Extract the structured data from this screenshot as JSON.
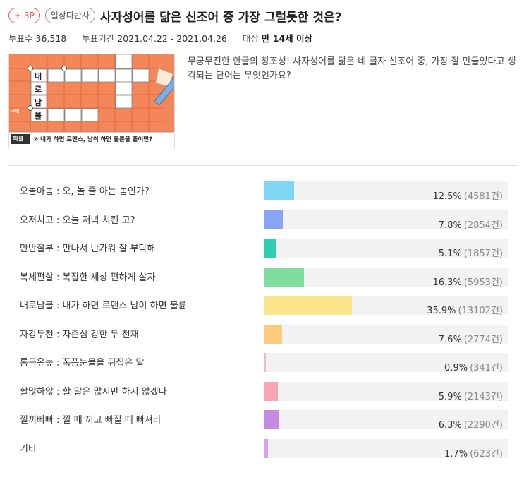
{
  "header": {
    "point_badge": "+ 3P",
    "category_badge": "일상다반사",
    "title": "사자성어를 닮은 신조어 중 가장 그럴듯한 것은?"
  },
  "meta": {
    "votes_label": "투표수",
    "votes_value": "36,518",
    "period_label": "투표기간",
    "period_value": "2021.04.22 - 2021.04.26",
    "target_label": "대상",
    "target_value": "만 14세 이상"
  },
  "thumbnail": {
    "vertical_word": [
      "내",
      "로",
      "남",
      "불"
    ],
    "box_label": "해설",
    "caption": "② 내가 하면 로맨스, 남이 하면 불륜을 줄이면?",
    "colors": {
      "orange": "#f4875a",
      "white": "#ffffff"
    }
  },
  "description": "무궁무진한 한글의 창조성! 사자성어를 닮은 네 글자 신조어 중, 가장 잘 만들었다고 생각되는 단어는 무엇인가요?",
  "options": [
    {
      "label": "오놀아놈 : 오, 놀 줄 아는 놈인가?",
      "pct": "12.5%",
      "count": "(4581건)",
      "share": 12.5,
      "color": "#7fd6f2"
    },
    {
      "label": "오저치고 : 오늘 저녁 치킨 고?",
      "pct": "7.8%",
      "count": "(2854건)",
      "share": 7.8,
      "color": "#86a6f5"
    },
    {
      "label": "만반잘부 : 만나서 반가워 잘 부탁해",
      "pct": "5.1%",
      "count": "(1857건)",
      "share": 5.1,
      "color": "#2ecfb1"
    },
    {
      "label": "복세편살 : 복잡한 세상 편하게 살자",
      "pct": "16.3%",
      "count": "(5953건)",
      "share": 16.3,
      "color": "#7fdd9d"
    },
    {
      "label": "내로남불 : 내가 하면 로맨스 남이 하면 불륜",
      "pct": "35.9%",
      "count": "(13102건)",
      "share": 35.9,
      "color": "#fde58e"
    },
    {
      "label": "자강두천 : 자존심 강한 두 천재",
      "pct": "7.6%",
      "count": "(2774건)",
      "share": 7.6,
      "color": "#fdc97a"
    },
    {
      "label": "롬곡옾눞 : 폭풍눈물을 뒤집은 말",
      "pct": "0.9%",
      "count": "(341건)",
      "share": 0.9,
      "color": "#f7b8c6"
    },
    {
      "label": "할많하않 : 할 말은 많지만 하지 않겠다",
      "pct": "5.9%",
      "count": "(2143건)",
      "share": 5.9,
      "color": "#f9a5b8"
    },
    {
      "label": "낄끼빠빠 : 낄 때 끼고 빠질 때 빠져라",
      "pct": "6.3%",
      "count": "(2290건)",
      "share": 6.3,
      "color": "#c58be0"
    },
    {
      "label": "기타",
      "pct": "1.7%",
      "count": "(623건)",
      "share": 1.7,
      "color": "#dda0f0"
    }
  ]
}
